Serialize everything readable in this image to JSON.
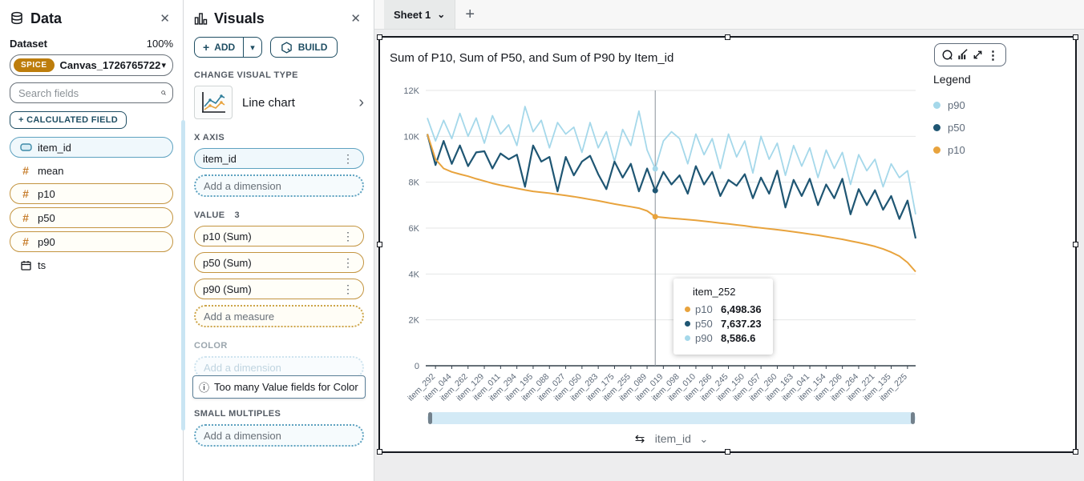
{
  "icons": {
    "close": "✕",
    "caret_down": "▾",
    "chevron_right": "›",
    "chevron_down": "⌄",
    "kebab": "⋮",
    "plus": "+",
    "sort_swap": "⇆",
    "info": "ⓘ",
    "hash": "#"
  },
  "data_panel": {
    "title": "Data",
    "dataset_label": "Dataset",
    "dataset_percent": "100%",
    "dataset_badge": "SPICE",
    "dataset_name": "Canvas_1726765722",
    "search_placeholder": "Search fields",
    "calculated_field_button": "+ CALCULATED FIELD",
    "fields": [
      {
        "name": "item_id",
        "type": "dimension"
      },
      {
        "name": "mean",
        "type": "measure"
      },
      {
        "name": "p10",
        "type": "measure"
      },
      {
        "name": "p50",
        "type": "measure"
      },
      {
        "name": "p90",
        "type": "measure"
      },
      {
        "name": "ts",
        "type": "date"
      }
    ]
  },
  "visuals_panel": {
    "title": "Visuals",
    "add_button": "ADD",
    "build_button": "BUILD",
    "change_visual_type_label": "CHANGE VISUAL TYPE",
    "visual_type_name": "Line chart",
    "x_axis_label": "X AXIS",
    "x_axis_field": "item_id",
    "x_axis_placeholder": "Add a dimension",
    "value_label": "VALUE",
    "value_count": "3",
    "value_fields": [
      "p10 (Sum)",
      "p50 (Sum)",
      "p90 (Sum)"
    ],
    "value_placeholder": "Add a measure",
    "color_label": "COLOR",
    "color_placeholder": "Add a dimension",
    "color_warning": "Too many Value fields for Color",
    "small_multiples_label": "SMALL MULTIPLES",
    "small_multiples_placeholder": "Add a dimension"
  },
  "sheet": {
    "tab_label": "Sheet 1"
  },
  "visual": {
    "title": "Sum of P10, Sum of P50, and Sum of P90 by Item_id",
    "legend_title": "Legend",
    "legend_items": [
      {
        "label": "p90",
        "color": "#a5d8ea"
      },
      {
        "label": "p50",
        "color": "#1f5673"
      },
      {
        "label": "p10",
        "color": "#e8a33d"
      }
    ],
    "tooltip": {
      "title": "item_252",
      "rows": [
        {
          "label": "p10",
          "value": "6,498.36",
          "color": "#e8a33d"
        },
        {
          "label": "p50",
          "value": "7,637.23",
          "color": "#1f5673"
        },
        {
          "label": "p90",
          "value": "8,586.6",
          "color": "#a5d8ea"
        }
      ]
    },
    "sort_field": "item_id"
  },
  "chart_data": {
    "type": "line",
    "title": "Sum of P10, Sum of P50, and Sum of P90 by Item_id",
    "xlabel": "item_id",
    "ylabel": "",
    "ylim": [
      0,
      12000
    ],
    "grid": true,
    "legend_position": "right",
    "y_ticks": [
      0,
      2000,
      4000,
      6000,
      8000,
      10000,
      12000
    ],
    "y_tick_labels": [
      "0",
      "2K",
      "4K",
      "6K",
      "8K",
      "10K",
      "12K"
    ],
    "x_tick_labels": [
      "item_292",
      "item_044",
      "item_262",
      "item_129",
      "item_011",
      "item_294",
      "item_195",
      "item_088",
      "item_027",
      "item_050",
      "item_283",
      "item_175",
      "item_255",
      "item_089",
      "item_019",
      "item_098",
      "item_010",
      "item_266",
      "item_245",
      "item_150",
      "item_057",
      "item_260",
      "item_163",
      "item_041",
      "item_154",
      "item_206",
      "item_264",
      "item_221",
      "item_135",
      "item_225"
    ],
    "crosshair_fraction": 0.4667,
    "hover_points": [
      {
        "series": "p10",
        "value": 6498.36,
        "color": "#e8a33d"
      },
      {
        "series": "p50",
        "value": 7637.23,
        "color": "#1f5673"
      },
      {
        "series": "p90",
        "value": 8586.6,
        "color": "#a5d8ea"
      }
    ],
    "series": [
      {
        "name": "p90",
        "color": "#a5d8ea",
        "values": [
          10800,
          9800,
          10700,
          9900,
          11000,
          10000,
          10800,
          9700,
          10900,
          10100,
          10500,
          9600,
          11300,
          10200,
          10700,
          9500,
          10600,
          10100,
          10400,
          9300,
          10600,
          9500,
          10200,
          8900,
          10300,
          9600,
          11100,
          9400,
          8587,
          9800,
          10200,
          9900,
          8800,
          10100,
          9200,
          9900,
          8600,
          10100,
          9100,
          9800,
          8400,
          10000,
          9000,
          9700,
          8300,
          9600,
          8700,
          9500,
          8200,
          9400,
          8600,
          9300,
          7900,
          9200,
          8500,
          9000,
          7800,
          8800,
          8200,
          8500,
          6600
        ]
      },
      {
        "name": "p50",
        "color": "#1f5673",
        "values": [
          10100,
          8750,
          9800,
          8800,
          9600,
          8700,
          9300,
          9350,
          8600,
          9250,
          9000,
          9200,
          7800,
          9600,
          8900,
          9100,
          7600,
          9100,
          8300,
          8900,
          9150,
          8350,
          7700,
          8900,
          8200,
          8800,
          7600,
          8600,
          7637,
          8450,
          7900,
          8300,
          7500,
          8700,
          7900,
          8450,
          7400,
          8100,
          7850,
          8350,
          7300,
          8200,
          7500,
          8500,
          6900,
          8100,
          7400,
          8150,
          7000,
          7900,
          7300,
          8150,
          6600,
          7700,
          7000,
          7650,
          6800,
          7400,
          6400,
          7200,
          5550
        ]
      },
      {
        "name": "p10",
        "color": "#e8a33d",
        "values": [
          10100,
          9000,
          8600,
          8450,
          8350,
          8260,
          8150,
          8050,
          7950,
          7870,
          7800,
          7730,
          7660,
          7600,
          7560,
          7520,
          7470,
          7420,
          7370,
          7310,
          7250,
          7190,
          7120,
          7050,
          6990,
          6930,
          6870,
          6750,
          6498,
          6460,
          6430,
          6400,
          6370,
          6340,
          6300,
          6260,
          6220,
          6180,
          6140,
          6100,
          6050,
          6010,
          5970,
          5930,
          5890,
          5840,
          5790,
          5740,
          5690,
          5630,
          5570,
          5510,
          5440,
          5370,
          5290,
          5200,
          5090,
          4950,
          4780,
          4500,
          4100
        ]
      }
    ]
  }
}
